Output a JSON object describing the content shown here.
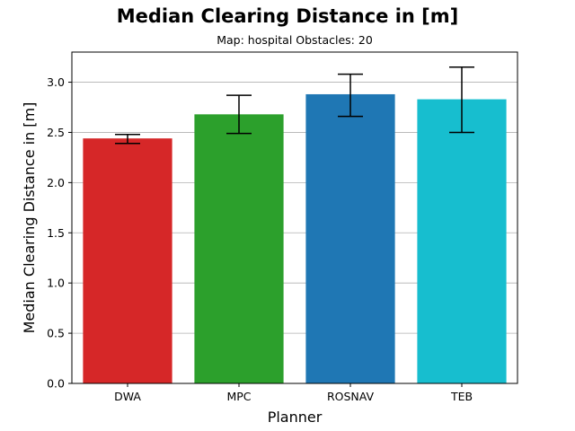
{
  "chart_data": {
    "type": "bar",
    "title": "Median Clearing Distance in [m]",
    "subtitle": "Map: hospital Obstacles: 20",
    "xlabel": "Planner",
    "ylabel": "Median Clearing Distance in [m]",
    "categories": [
      "DWA",
      "MPC",
      "ROSNAV",
      "TEB"
    ],
    "values": [
      2.44,
      2.68,
      2.88,
      2.83
    ],
    "error_low": [
      2.39,
      2.49,
      2.66,
      2.5
    ],
    "error_high": [
      2.48,
      2.87,
      3.08,
      3.15
    ],
    "colors": [
      "#d62728",
      "#2ca02c",
      "#1f77b4",
      "#17becf"
    ],
    "ylim": [
      0,
      3.3
    ],
    "yticks": [
      "0.0",
      "0.5",
      "1.0",
      "1.5",
      "2.0",
      "2.5",
      "3.0"
    ],
    "grid": "horizontal",
    "legend": "none"
  }
}
